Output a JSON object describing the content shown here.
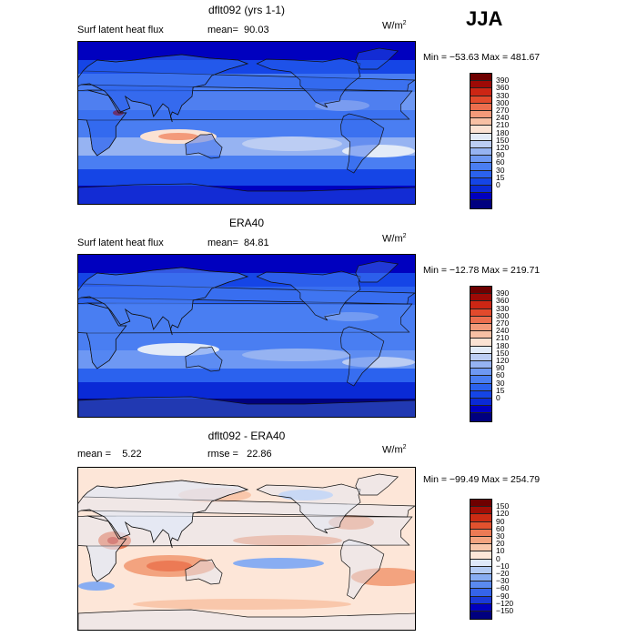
{
  "season": "JJA",
  "colors": {
    "abs_scale": [
      "#00007f",
      "#0000bf",
      "#0a2ad6",
      "#1545e6",
      "#2b62ee",
      "#4a7ef2",
      "#6e98f3",
      "#96b3f2",
      "#bccdf3",
      "#e3ebf8",
      "#fbe2d3",
      "#f7c0a4",
      "#f39a7a",
      "#ec6e4e",
      "#e24a2c",
      "#cc2614",
      "#9e0a06",
      "#6e0000"
    ],
    "diff_scale": [
      "#00007f",
      "#0000bf",
      "#1a3ad8",
      "#3564e9",
      "#5a8af0",
      "#88adf2",
      "#b4cbf3",
      "#dfe8f8",
      "#fde6d8",
      "#f9c7ab",
      "#f3a37f",
      "#ec7a55",
      "#e2512e",
      "#cc2c14",
      "#a00e06",
      "#6e0000"
    ]
  },
  "panels": [
    {
      "title": "dflt092 (yrs 1-1)",
      "label_left": "Surf latent heat flux",
      "label_right": "mean=  90.03",
      "units": "W/m",
      "units_sup": "2",
      "minmax": "Min = −53.63 Max = 481.67"
    },
    {
      "title": "ERA40",
      "label_left": "Surf latent heat flux",
      "label_right": "mean=  84.81",
      "units": "W/m",
      "units_sup": "2",
      "minmax": "Min = −12.78 Max = 219.71"
    },
    {
      "title": "dflt092 - ERA40",
      "label_left": "mean =    5.22",
      "label_right": "rmse =   22.86",
      "units": "W/m",
      "units_sup": "2",
      "minmax": "Min = −99.49 Max = 254.79"
    }
  ],
  "chart_data": [
    {
      "type": "heatmap",
      "title": "dflt092 (yrs 1-1)",
      "variable": "Surf latent heat flux",
      "mean": 90.03,
      "min": -53.63,
      "max": 481.67,
      "units": "W/m2",
      "colorbar_levels": [
        "390",
        "360",
        "330",
        "300",
        "270",
        "240",
        "210",
        "180",
        "150",
        "120",
        "90",
        "60",
        "30",
        "15",
        "0"
      ]
    },
    {
      "type": "heatmap",
      "title": "ERA40",
      "variable": "Surf latent heat flux",
      "mean": 84.81,
      "min": -12.78,
      "max": 219.71,
      "units": "W/m2",
      "colorbar_levels": [
        "390",
        "360",
        "330",
        "300",
        "270",
        "240",
        "210",
        "180",
        "150",
        "120",
        "90",
        "60",
        "30",
        "15",
        "0"
      ]
    },
    {
      "type": "heatmap",
      "title": "dflt092 - ERA40",
      "mean": 5.22,
      "rmse": 22.86,
      "min": -99.49,
      "max": 254.79,
      "units": "W/m2",
      "colorbar_levels": [
        "150",
        "120",
        "90",
        "60",
        "30",
        "20",
        "10",
        "0",
        "−10",
        "−20",
        "−30",
        "−60",
        "−90",
        "−120",
        "−150"
      ]
    }
  ]
}
